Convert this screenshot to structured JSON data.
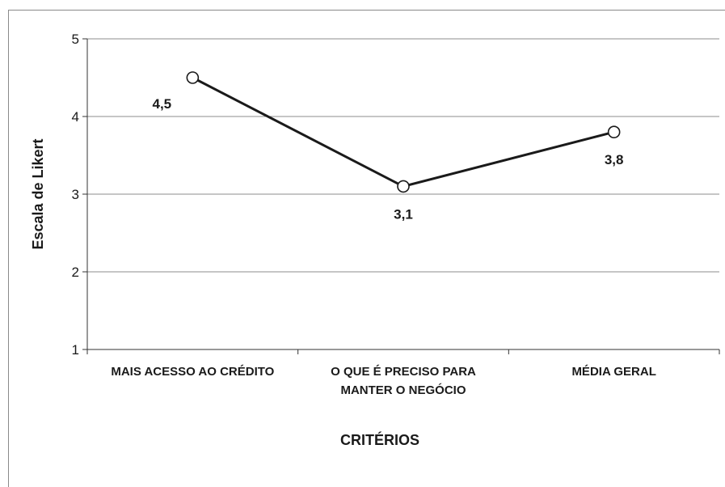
{
  "chart_data": {
    "type": "line",
    "categories": [
      [
        "MAIS ACESSO AO CRÉDITO"
      ],
      [
        "O QUE É PRECISO PARA",
        "MANTER O NEGÓCIO"
      ],
      [
        "MÉDIA GERAL"
      ]
    ],
    "series": [
      {
        "values": [
          4.5,
          3.1,
          3.8
        ],
        "data_labels": [
          "4,5",
          "3,1",
          "3,8"
        ],
        "color": "#1a1a1a",
        "marker": "open-circle"
      }
    ],
    "xlabel": "CRITÉRIOS",
    "ylabel": "Escala de Likert",
    "ylim": [
      1,
      5
    ],
    "yticks": [
      1,
      2,
      3,
      4,
      5
    ],
    "grid": "horizontal",
    "legend": "none"
  }
}
